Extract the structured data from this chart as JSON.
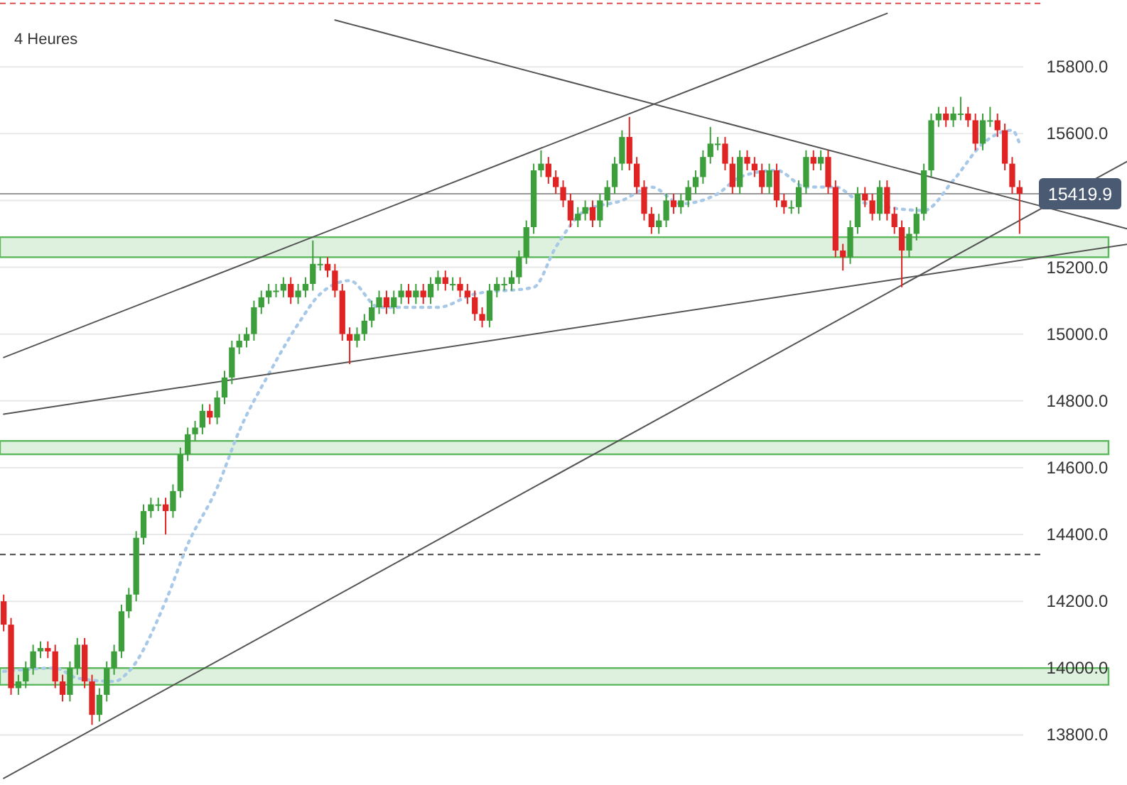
{
  "chart_data": {
    "type": "candlestick",
    "title": "4 Heures",
    "categories": [
      null,
      null,
      null,
      null,
      null,
      null,
      null,
      null,
      null,
      null,
      null,
      null,
      null,
      null,
      null,
      null,
      null,
      null,
      null,
      null,
      null,
      null,
      null,
      null,
      null,
      null,
      null,
      null,
      null,
      null,
      null,
      null,
      null,
      null,
      null,
      null,
      null,
      null,
      null,
      null,
      null,
      null,
      null,
      null,
      null,
      null,
      null,
      null,
      null,
      null,
      null,
      null,
      null,
      null,
      null,
      null,
      null,
      null,
      null,
      null,
      null,
      null,
      null,
      null,
      null,
      null,
      null,
      null,
      null,
      null,
      null,
      null,
      null,
      null,
      null,
      null,
      null,
      null,
      null,
      null,
      null,
      null,
      null,
      null,
      null,
      null,
      null,
      null,
      null,
      null,
      null,
      null,
      null,
      null,
      null,
      null,
      null,
      null,
      null,
      null,
      null,
      null,
      null,
      null,
      null,
      null,
      null,
      null,
      null,
      null,
      null,
      null,
      null,
      null,
      null,
      null,
      null,
      null,
      null,
      null,
      null,
      null,
      null,
      null,
      null,
      null,
      null,
      null,
      null,
      null,
      null,
      null,
      null,
      null,
      null,
      null,
      null,
      null,
      null
    ],
    "ohlc": [
      [
        14200,
        14220,
        14110,
        14130
      ],
      [
        14130,
        14150,
        13920,
        13940
      ],
      [
        13940,
        13980,
        13920,
        13960
      ],
      [
        13960,
        14020,
        13940,
        14000
      ],
      [
        14000,
        14070,
        13980,
        14050
      ],
      [
        14050,
        14080,
        14030,
        14060
      ],
      [
        14060,
        14080,
        14030,
        14050
      ],
      [
        14050,
        14070,
        13940,
        13960
      ],
      [
        13960,
        13980,
        13900,
        13920
      ],
      [
        13920,
        14020,
        13900,
        14000
      ],
      [
        14000,
        14090,
        13980,
        14070
      ],
      [
        14070,
        14090,
        13940,
        13960
      ],
      [
        13960,
        13980,
        13830,
        13860
      ],
      [
        13860,
        13940,
        13840,
        13920
      ],
      [
        13920,
        14020,
        13900,
        14000
      ],
      [
        14000,
        14070,
        13980,
        14050
      ],
      [
        14050,
        14190,
        14030,
        14170
      ],
      [
        14170,
        14240,
        14150,
        14220
      ],
      [
        14220,
        14410,
        14200,
        14390
      ],
      [
        14390,
        14490,
        14370,
        14470
      ],
      [
        14470,
        14510,
        14450,
        14490
      ],
      [
        14490,
        14510,
        14470,
        14490
      ],
      [
        14490,
        14510,
        14400,
        14470
      ],
      [
        14470,
        14550,
        14450,
        14530
      ],
      [
        14530,
        14660,
        14510,
        14640
      ],
      [
        14640,
        14720,
        14620,
        14700
      ],
      [
        14700,
        14740,
        14680,
        14720
      ],
      [
        14720,
        14790,
        14700,
        14770
      ],
      [
        14770,
        14790,
        14730,
        14750
      ],
      [
        14750,
        14830,
        14730,
        14810
      ],
      [
        14810,
        14890,
        14790,
        14870
      ],
      [
        14870,
        14980,
        14850,
        14960
      ],
      [
        14960,
        15000,
        14940,
        14980
      ],
      [
        14980,
        15020,
        14960,
        15000
      ],
      [
        15000,
        15100,
        14980,
        15080
      ],
      [
        15080,
        15130,
        15060,
        15110
      ],
      [
        15110,
        15150,
        15090,
        15130
      ],
      [
        15130,
        15150,
        15110,
        15130
      ],
      [
        15130,
        15170,
        15110,
        15150
      ],
      [
        15150,
        15170,
        15090,
        15110
      ],
      [
        15110,
        15150,
        15090,
        15130
      ],
      [
        15130,
        15170,
        15110,
        15150
      ],
      [
        15150,
        15280,
        15130,
        15210
      ],
      [
        15210,
        15230,
        15190,
        15210
      ],
      [
        15210,
        15230,
        15170,
        15190
      ],
      [
        15190,
        15210,
        15110,
        15130
      ],
      [
        15130,
        15150,
        14980,
        15000
      ],
      [
        15000,
        15020,
        14910,
        14980
      ],
      [
        14980,
        15020,
        14960,
        15000
      ],
      [
        15000,
        15060,
        14980,
        15040
      ],
      [
        15040,
        15100,
        15020,
        15080
      ],
      [
        15080,
        15130,
        15060,
        15110
      ],
      [
        15110,
        15130,
        15060,
        15080
      ],
      [
        15080,
        15130,
        15060,
        15110
      ],
      [
        15110,
        15150,
        15090,
        15130
      ],
      [
        15130,
        15150,
        15090,
        15110
      ],
      [
        15110,
        15150,
        15090,
        15130
      ],
      [
        15130,
        15150,
        15090,
        15110
      ],
      [
        15110,
        15170,
        15090,
        15150
      ],
      [
        15150,
        15190,
        15130,
        15170
      ],
      [
        15170,
        15190,
        15130,
        15150
      ],
      [
        15150,
        15170,
        15130,
        15150
      ],
      [
        15150,
        15170,
        15110,
        15130
      ],
      [
        15130,
        15150,
        15090,
        15110
      ],
      [
        15110,
        15130,
        15040,
        15060
      ],
      [
        15060,
        15080,
        15020,
        15040
      ],
      [
        15040,
        15150,
        15020,
        15130
      ],
      [
        15130,
        15170,
        15110,
        15150
      ],
      [
        15150,
        15170,
        15130,
        15150
      ],
      [
        15150,
        15190,
        15130,
        15170
      ],
      [
        15170,
        15250,
        15150,
        15230
      ],
      [
        15230,
        15340,
        15210,
        15320
      ],
      [
        15320,
        15510,
        15300,
        15490
      ],
      [
        15490,
        15550,
        15470,
        15510
      ],
      [
        15510,
        15530,
        15450,
        15470
      ],
      [
        15470,
        15490,
        15420,
        15440
      ],
      [
        15440,
        15460,
        15380,
        15400
      ],
      [
        15400,
        15420,
        15320,
        15340
      ],
      [
        15340,
        15380,
        15320,
        15360
      ],
      [
        15360,
        15400,
        15340,
        15380
      ],
      [
        15380,
        15400,
        15320,
        15340
      ],
      [
        15340,
        15420,
        15320,
        15400
      ],
      [
        15400,
        15460,
        15380,
        15440
      ],
      [
        15440,
        15530,
        15420,
        15510
      ],
      [
        15510,
        15610,
        15490,
        15590
      ],
      [
        15590,
        15650,
        15490,
        15510
      ],
      [
        15510,
        15530,
        15420,
        15440
      ],
      [
        15440,
        15460,
        15340,
        15360
      ],
      [
        15360,
        15380,
        15300,
        15320
      ],
      [
        15320,
        15360,
        15300,
        15340
      ],
      [
        15340,
        15420,
        15320,
        15400
      ],
      [
        15400,
        15420,
        15360,
        15380
      ],
      [
        15380,
        15420,
        15360,
        15400
      ],
      [
        15400,
        15460,
        15380,
        15440
      ],
      [
        15440,
        15490,
        15420,
        15470
      ],
      [
        15470,
        15550,
        15450,
        15530
      ],
      [
        15530,
        15620,
        15510,
        15570
      ],
      [
        15570,
        15590,
        15550,
        15570
      ],
      [
        15570,
        15590,
        15490,
        15510
      ],
      [
        15510,
        15530,
        15420,
        15440
      ],
      [
        15440,
        15550,
        15420,
        15530
      ],
      [
        15530,
        15550,
        15490,
        15510
      ],
      [
        15510,
        15530,
        15470,
        15490
      ],
      [
        15490,
        15510,
        15420,
        15440
      ],
      [
        15440,
        15510,
        15420,
        15490
      ],
      [
        15490,
        15510,
        15380,
        15400
      ],
      [
        15400,
        15420,
        15360,
        15380
      ],
      [
        15380,
        15400,
        15360,
        15380
      ],
      [
        15380,
        15460,
        15360,
        15440
      ],
      [
        15440,
        15550,
        15420,
        15530
      ],
      [
        15530,
        15550,
        15490,
        15510
      ],
      [
        15510,
        15550,
        15490,
        15530
      ],
      [
        15530,
        15550,
        15420,
        15440
      ],
      [
        15440,
        15460,
        15230,
        15250
      ],
      [
        15250,
        15270,
        15190,
        15230
      ],
      [
        15230,
        15340,
        15210,
        15320
      ],
      [
        15320,
        15440,
        15300,
        15420
      ],
      [
        15420,
        15440,
        15380,
        15400
      ],
      [
        15400,
        15420,
        15340,
        15360
      ],
      [
        15360,
        15460,
        15340,
        15440
      ],
      [
        15440,
        15460,
        15340,
        15360
      ],
      [
        15360,
        15380,
        15300,
        15320
      ],
      [
        15320,
        15340,
        15140,
        15250
      ],
      [
        15250,
        15320,
        15230,
        15300
      ],
      [
        15300,
        15380,
        15280,
        15360
      ],
      [
        15360,
        15510,
        15340,
        15490
      ],
      [
        15490,
        15660,
        15470,
        15640
      ],
      [
        15640,
        15680,
        15620,
        15660
      ],
      [
        15660,
        15680,
        15620,
        15640
      ],
      [
        15640,
        15680,
        15620,
        15660
      ],
      [
        15660,
        15710,
        15640,
        15660
      ],
      [
        15660,
        15680,
        15620,
        15640
      ],
      [
        15640,
        15660,
        15550,
        15570
      ],
      [
        15570,
        15660,
        15550,
        15640
      ],
      [
        15640,
        15680,
        15620,
        15640
      ],
      [
        15640,
        15660,
        15590,
        15610
      ],
      [
        15610,
        15630,
        15490,
        15510
      ],
      [
        15510,
        15530,
        15420,
        15440
      ],
      [
        15440,
        15460,
        15300,
        15419.9
      ]
    ],
    "series": [
      {
        "type": "line",
        "color": "#a8c8e8",
        "line_style": "dotted",
        "values": [
          13990,
          null,
          null,
          null,
          null,
          null,
          null,
          14000,
          null,
          null,
          13970,
          null,
          null,
          null,
          null,
          13960,
          null,
          13990,
          null,
          null,
          null,
          null,
          14200,
          null,
          null,
          14370,
          null,
          null,
          null,
          14540,
          null,
          null,
          14710,
          null,
          null,
          null,
          14880,
          null,
          null,
          null,
          15030,
          null,
          null,
          15120,
          null,
          null,
          null,
          15160,
          null,
          null,
          null,
          15080,
          null,
          null,
          null,
          null,
          null,
          null,
          null,
          15080,
          null,
          null,
          null,
          null,
          15120,
          null,
          null,
          null,
          null,
          null,
          null,
          null,
          15140,
          null,
          null,
          15260,
          null,
          null,
          null,
          15370,
          null,
          null,
          null,
          null,
          15400,
          null,
          null,
          null,
          15440,
          null,
          null,
          null,
          15390,
          null,
          null,
          null,
          null,
          15420,
          null,
          null,
          15470,
          null,
          null,
          null,
          null,
          15490,
          null,
          null,
          null,
          15440,
          null,
          null,
          null,
          15440,
          null,
          null,
          15400,
          null,
          null,
          null,
          15380,
          null,
          null,
          null,
          null,
          15370,
          null,
          null,
          null,
          15460,
          null,
          null,
          null,
          15570,
          null,
          null,
          null,
          15610,
          15570
        ]
      },
      {
        "type": "line",
        "color": "#555555",
        "values": [
          14930,
          null,
          null,
          null,
          null,
          null,
          null,
          null,
          null,
          null,
          null,
          null,
          null,
          null,
          null,
          null,
          null,
          null,
          null,
          null,
          null,
          null,
          null,
          null,
          null,
          null,
          null,
          null,
          null,
          null,
          null,
          null,
          null,
          null,
          null,
          null,
          null,
          null,
          null,
          null,
          null,
          null,
          null,
          null,
          null,
          null,
          null,
          null,
          null,
          null,
          null,
          null,
          null,
          null,
          null,
          null,
          null,
          null,
          null,
          null,
          null,
          null,
          null,
          null,
          null,
          null,
          null,
          null,
          null,
          null,
          null,
          null,
          null,
          null,
          null,
          null,
          null,
          null,
          null,
          null,
          null,
          null,
          null,
          null,
          null,
          null,
          null,
          null,
          null,
          null,
          null,
          null,
          null,
          null,
          null,
          null,
          null,
          null,
          null,
          null,
          null,
          null,
          null,
          null,
          null,
          null,
          null,
          null,
          null,
          null,
          null,
          null,
          null,
          null,
          null,
          null,
          null,
          null,
          null,
          null,
          15960,
          null,
          null,
          null,
          null,
          null,
          null,
          null,
          null,
          null,
          null,
          null,
          null,
          null,
          null,
          null,
          null,
          null,
          null
        ]
      },
      {
        "type": "line",
        "color": "#555555",
        "values": [
          null,
          null,
          null,
          null,
          null,
          null,
          null,
          null,
          null,
          null,
          null,
          null,
          null,
          null,
          null,
          null,
          null,
          null,
          null,
          null,
          null,
          null,
          null,
          null,
          null,
          null,
          null,
          null,
          null,
          null,
          null,
          null,
          null,
          null,
          null,
          null,
          null,
          null,
          null,
          null,
          null,
          null,
          null,
          null,
          null,
          15940,
          null,
          null,
          null,
          null,
          null,
          null,
          null,
          null,
          null,
          null,
          null,
          null,
          null,
          null,
          null,
          null,
          null,
          null,
          null,
          null,
          null,
          null,
          null,
          null,
          null,
          null,
          null,
          null,
          null,
          null,
          null,
          null,
          null,
          null,
          null,
          null,
          null,
          null,
          null,
          null,
          null,
          null,
          null,
          null,
          null,
          null,
          null,
          null,
          null,
          null,
          null,
          null,
          null,
          null,
          null,
          null,
          null,
          null,
          null,
          null,
          null,
          null,
          null,
          null,
          null,
          null,
          null,
          null,
          null,
          null,
          null,
          null,
          null,
          null,
          null,
          null,
          null,
          null,
          null,
          null,
          null,
          null,
          null,
          null,
          null,
          null,
          null,
          null,
          null,
          null,
          null,
          null,
          15400
        ]
      },
      {
        "type": "line",
        "color": "#555555",
        "values": [
          14760,
          null,
          null,
          null,
          null,
          null,
          null,
          null,
          null,
          null,
          null,
          null,
          null,
          null,
          null,
          null,
          null,
          null,
          null,
          null,
          null,
          null,
          null,
          null,
          null,
          null,
          null,
          null,
          null,
          null,
          null,
          null,
          null,
          null,
          null,
          null,
          null,
          null,
          null,
          null,
          null,
          null,
          null,
          null,
          null,
          null,
          null,
          null,
          null,
          null,
          null,
          null,
          null,
          null,
          null,
          null,
          null,
          null,
          null,
          null,
          null,
          null,
          null,
          null,
          null,
          null,
          null,
          null,
          null,
          null,
          null,
          null,
          null,
          null,
          null,
          null,
          null,
          null,
          null,
          null,
          null,
          null,
          null,
          null,
          null,
          null,
          null,
          null,
          null,
          null,
          null,
          null,
          null,
          null,
          null,
          null,
          null,
          null,
          null,
          null,
          null,
          null,
          null,
          null,
          null,
          null,
          null,
          null,
          null,
          null,
          null,
          null,
          null,
          null,
          null,
          null,
          null,
          null,
          null,
          null,
          null,
          null,
          null,
          null,
          null,
          null,
          null,
          null,
          null,
          null,
          null,
          null,
          null,
          null,
          null,
          null,
          null,
          null,
          15220
        ]
      },
      {
        "type": "line",
        "color": "#555555",
        "values": [
          13670,
          null,
          null,
          null,
          null,
          null,
          null,
          null,
          null,
          null,
          null,
          null,
          null,
          null,
          null,
          null,
          null,
          null,
          null,
          null,
          null,
          null,
          null,
          null,
          null,
          null,
          null,
          null,
          null,
          null,
          null,
          null,
          null,
          null,
          null,
          null,
          null,
          null,
          null,
          null,
          null,
          null,
          null,
          null,
          null,
          null,
          null,
          null,
          null,
          null,
          null,
          null,
          null,
          null,
          null,
          null,
          null,
          null,
          null,
          null,
          null,
          null,
          null,
          null,
          null,
          null,
          null,
          null,
          null,
          null,
          null,
          null,
          null,
          null,
          null,
          null,
          null,
          null,
          null,
          null,
          null,
          null,
          null,
          null,
          null,
          null,
          null,
          null,
          null,
          null,
          null,
          null,
          null,
          null,
          null,
          null,
          null,
          null,
          null,
          null,
          null,
          null,
          null,
          null,
          null,
          null,
          null,
          null,
          null,
          null,
          null,
          null,
          null,
          null,
          null,
          null,
          null,
          null,
          null,
          null,
          null,
          null,
          null,
          null,
          null,
          null,
          null,
          null,
          null,
          null,
          null,
          null,
          null,
          null,
          null,
          null,
          null,
          null,
          15340
        ]
      }
    ],
    "ylim": [
      13650,
      16000
    ],
    "yticks": [
      {
        "value": 13800,
        "label": "13800.0"
      },
      {
        "value": 14000,
        "label": "14000.0"
      },
      {
        "value": 14200,
        "label": "14200.0"
      },
      {
        "value": 14400,
        "label": "14400.0"
      },
      {
        "value": 14600,
        "label": "14600.0"
      },
      {
        "value": 14800,
        "label": "14800.0"
      },
      {
        "value": 15000,
        "label": "15000.0"
      },
      {
        "value": 15200,
        "label": "15200.0"
      },
      {
        "value": 15400,
        "label": null
      },
      {
        "value": 15600,
        "label": "15600.0"
      },
      {
        "value": 15800,
        "label": "15800.0"
      }
    ],
    "grid": "y",
    "tick_labels": "y",
    "bands": [
      {
        "axis": "y",
        "from": 15230,
        "to": 15290,
        "color": "#5cb85c"
      },
      {
        "axis": "y",
        "from": 14640,
        "to": 14680,
        "color": "#5cb85c"
      },
      {
        "axis": "y",
        "from": 13950,
        "to": 14000,
        "color": "#5cb85c"
      }
    ],
    "ref_lines": [
      {
        "axis": "y",
        "value": 15419.9,
        "label": "15419.9",
        "color": "#999999",
        "line_style": "solid"
      },
      {
        "axis": "y",
        "value": 14340,
        "color": "#444444",
        "line_style": "dashed"
      },
      {
        "axis": "y",
        "value": 15990,
        "color": "#e05050",
        "line_style": "dashed"
      }
    ]
  }
}
